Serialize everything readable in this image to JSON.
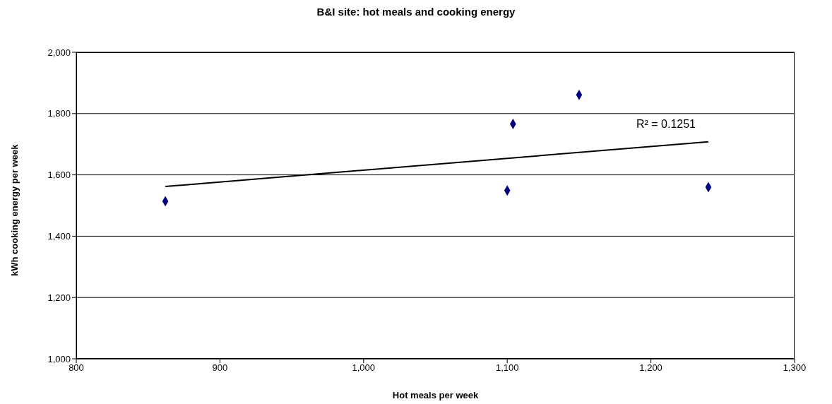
{
  "chart_data": {
    "type": "scatter",
    "title": "B&I site: hot meals and cooking energy",
    "xlabel": "Hot meals per week",
    "ylabel": "kWh cooking energy per week",
    "series": [
      {
        "color": "#000080",
        "x": [
          862,
          1100,
          1104,
          1150,
          1240
        ],
        "values": [
          1514,
          1549,
          1766,
          1861,
          1560
        ],
        "marker": "diamond"
      },
      {
        "type": "line",
        "color": "#000000",
        "x": [
          862,
          1240
        ],
        "values": [
          1562,
          1708
        ],
        "marker": "none",
        "line_style": "solid"
      }
    ],
    "annotations": [
      "R² = 0.1251"
    ],
    "xlim": [
      800,
      1300
    ],
    "xticks": [
      {
        "value": 800,
        "label": "800"
      },
      {
        "value": 900,
        "label": "900"
      },
      {
        "value": 1000,
        "label": "1,000"
      },
      {
        "value": 1100,
        "label": "1,100"
      },
      {
        "value": 1200,
        "label": "1,200"
      },
      {
        "value": 1300,
        "label": "1,300"
      }
    ],
    "ylim": [
      1000,
      2000
    ],
    "yticks": [
      {
        "value": 1000,
        "label": "1,000"
      },
      {
        "value": 1200,
        "label": "1,200"
      },
      {
        "value": 1400,
        "label": "1,400"
      },
      {
        "value": 1600,
        "label": "1,600"
      },
      {
        "value": 1800,
        "label": "1,800"
      },
      {
        "value": 2000,
        "label": "2,000"
      }
    ],
    "grid": "y",
    "legend": false
  }
}
